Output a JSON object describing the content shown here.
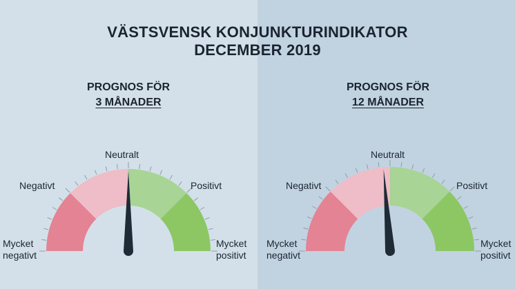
{
  "title": {
    "line1": "VÄSTSVENSK KONJUNKTURINDIKATOR",
    "line2": "DECEMBER 2019"
  },
  "labels": {
    "neutral": "Neutralt",
    "negative": "Negativt",
    "positive": "Positivt",
    "very_negative_1": "Mycket",
    "very_negative_2": "negativt",
    "very_positive_1": "Mycket",
    "very_positive_2": "positivt"
  },
  "gauges": [
    {
      "heading_line1": "PROGNOS FÖR",
      "heading_line2": "3 MÅNADER",
      "needle_value": 0
    },
    {
      "heading_line1": "PROGNOS FÖR",
      "heading_line2": "12 MÅNADER",
      "needle_value": -0.05
    }
  ],
  "colors": {
    "very_negative": "#e38394",
    "negative": "#eebdc7",
    "positive": "#a8d495",
    "very_positive": "#8cc764",
    "needle": "#1f2b36",
    "tick": "#8f9ba6",
    "panel_left": "#d3e0e9",
    "panel_right": "#c1d3e1"
  }
}
